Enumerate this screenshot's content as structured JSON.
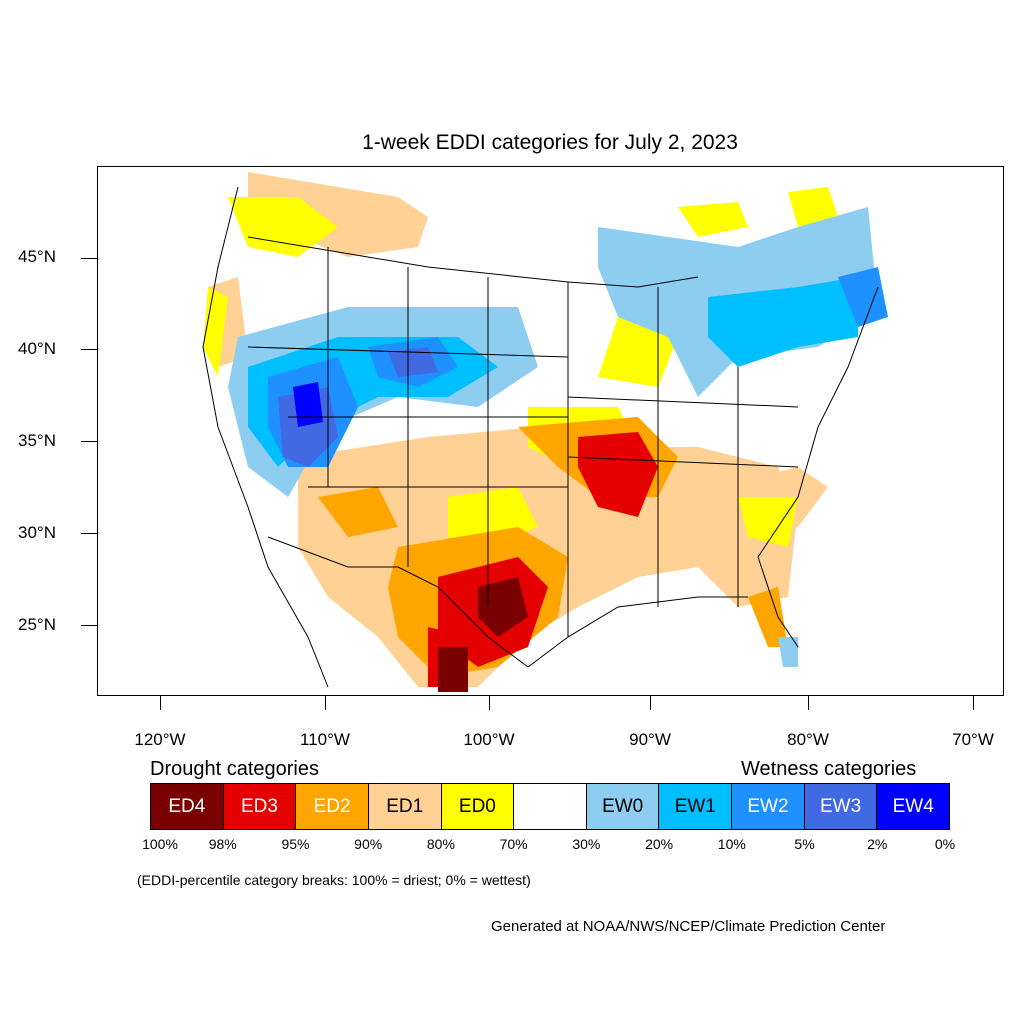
{
  "title": "1-week EDDI categories for July 2, 2023",
  "lat_labels": [
    "45°N",
    "40°N",
    "35°N",
    "30°N",
    "25°N"
  ],
  "lon_labels": [
    "120°W",
    "110°W",
    "100°W",
    "90°W",
    "80°W",
    "70°W"
  ],
  "drought_heading": "Drought categories",
  "wetness_heading": "Wetness categories",
  "legend": [
    {
      "label": "ED4",
      "color": "#7a0000",
      "text_color": "#ffffff"
    },
    {
      "label": "ED3",
      "color": "#e50000",
      "text_color": "#ffffff"
    },
    {
      "label": "ED2",
      "color": "#ffa500",
      "text_color": "#ffffff"
    },
    {
      "label": "ED1",
      "color": "#ffd194",
      "text_color": "#000000"
    },
    {
      "label": "ED0",
      "color": "#ffff00",
      "text_color": "#000000"
    },
    {
      "label": "",
      "color": "#ffffff",
      "text_color": "#000000"
    },
    {
      "label": "EW0",
      "color": "#8ccdf0",
      "text_color": "#000000"
    },
    {
      "label": "EW1",
      "color": "#00bfff",
      "text_color": "#000000"
    },
    {
      "label": "EW2",
      "color": "#1e90ff",
      "text_color": "#ffffff"
    },
    {
      "label": "EW3",
      "color": "#4169e1",
      "text_color": "#ffffff"
    },
    {
      "label": "EW4",
      "color": "#0000ff",
      "text_color": "#ffffff"
    }
  ],
  "percent_breaks": [
    "100%",
    "98%",
    "95%",
    "90%",
    "80%",
    "70%",
    "30%",
    "20%",
    "10%",
    "5%",
    "2%",
    "0%"
  ],
  "note": "(EDDI-percentile category breaks: 100% = driest; 0% = wettest)",
  "credit": "Generated at NOAA/NWS/NCEP/Climate Prediction Center"
}
